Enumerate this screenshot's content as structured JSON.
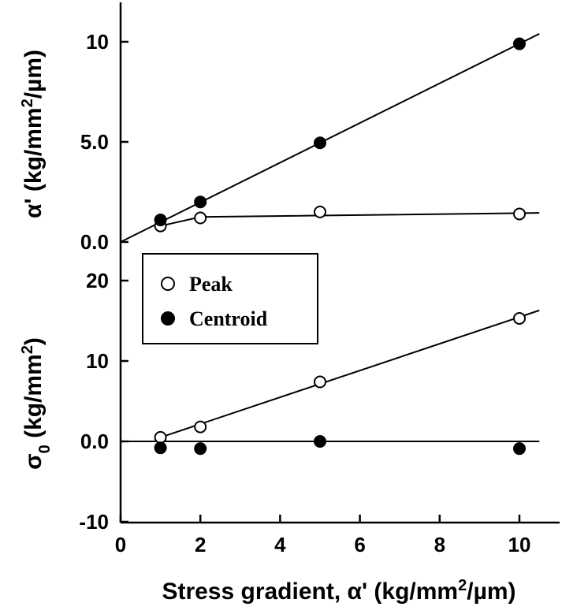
{
  "chart_data": [
    {
      "type": "scatter",
      "panel": "top",
      "ylabel_prefix": "α'",
      "ylabel_unit": " (kg/mm",
      "ylabel_sup": "2",
      "ylabel_suffix": "/µm)",
      "ylim": [
        0,
        12
      ],
      "yticks": [
        "0.0",
        "5.0",
        "10"
      ],
      "ytick_values": [
        0,
        5,
        10
      ],
      "xlim": [
        0,
        11
      ],
      "series": [
        {
          "name": "Peak",
          "marker": "open-circle",
          "x": [
            1,
            2,
            5,
            10
          ],
          "y": [
            0.8,
            1.2,
            1.5,
            1.4
          ],
          "line_x": [
            1,
            2,
            10.5
          ],
          "line_y": [
            0.8,
            1.25,
            1.45
          ]
        },
        {
          "name": "Centroid",
          "marker": "filled-circle",
          "x": [
            1,
            2,
            5,
            10
          ],
          "y": [
            1.1,
            2.0,
            4.95,
            9.9
          ],
          "line_x": [
            0,
            10.5
          ],
          "line_y": [
            0,
            10.4
          ]
        }
      ]
    },
    {
      "type": "scatter",
      "panel": "bottom",
      "ylabel_prefix": "σ",
      "ylabel_sub": "0",
      "ylabel_unit": " (kg/mm",
      "ylabel_sup": "2",
      "ylabel_suffix": ")",
      "ylim": [
        -10,
        20
      ],
      "yticks": [
        "-10",
        "0.0",
        "10",
        "20"
      ],
      "ytick_values": [
        -10,
        0,
        10,
        20
      ],
      "xlim": [
        0,
        11
      ],
      "series": [
        {
          "name": "Peak",
          "marker": "open-circle",
          "x": [
            1,
            2,
            5,
            10
          ],
          "y": [
            0.5,
            1.8,
            7.4,
            15.3
          ],
          "line_x": [
            1,
            10.5
          ],
          "line_y": [
            0.5,
            16.3
          ]
        },
        {
          "name": "Centroid",
          "marker": "filled-circle",
          "x": [
            1,
            2,
            5,
            10
          ],
          "y": [
            -0.8,
            -0.9,
            0.0,
            -0.9
          ],
          "line_x": [
            0,
            10.5
          ],
          "line_y": [
            0,
            0
          ]
        }
      ]
    }
  ],
  "x_axis": {
    "label_main": "Stress gradient, α' (kg/mm",
    "label_sup": "2",
    "label_tail": "/µm)",
    "ticks": [
      "0",
      "2",
      "4",
      "6",
      "8",
      "10"
    ],
    "tick_values": [
      0,
      2,
      4,
      6,
      8,
      10
    ]
  },
  "legend": {
    "placement": "center-left",
    "entries": [
      {
        "label": "Peak",
        "marker": "open-circle"
      },
      {
        "label": "Centroid",
        "marker": "filled-circle"
      }
    ]
  }
}
